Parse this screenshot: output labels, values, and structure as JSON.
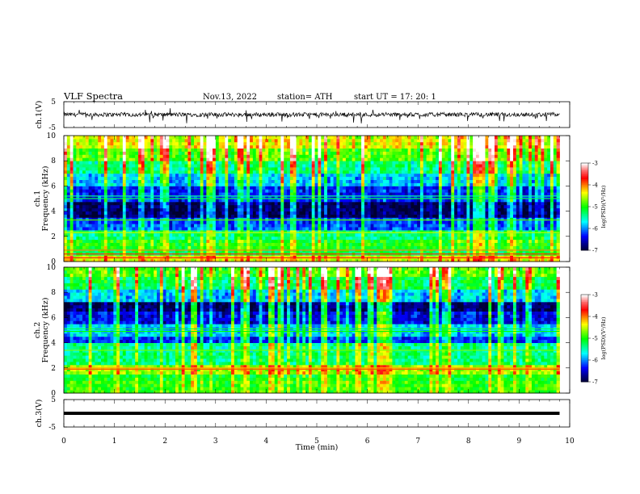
{
  "header": {
    "title": "VLF  Spectra",
    "date": "Nov.13, 2022",
    "station": "station= ATH",
    "start_time": "start  UT  =    17: 20: 1"
  },
  "colors": {
    "trace": "#000000",
    "colormap": [
      "#000030",
      "#000090",
      "#0000ff",
      "#0080ff",
      "#00ffff",
      "#00ff80",
      "#00ff00",
      "#80ff00",
      "#ffff00",
      "#ff8000",
      "#ff0000",
      "#ff6666",
      "#ffffff"
    ]
  },
  "chart_data": [
    {
      "name": "ch1-waveform",
      "type": "line",
      "ylabel": "ch.1(V)",
      "xlim": [
        0,
        10
      ],
      "ylim": [
        -5,
        5
      ],
      "yticks": [
        "5",
        "-5"
      ],
      "trace": {
        "x_end": 9.8,
        "baseline": 0,
        "amplitude": 0.8,
        "spike_amplitude": 3.0
      }
    },
    {
      "name": "ch1-spectrogram",
      "type": "heatmap",
      "ylabel_line1": "ch.1",
      "ylabel_line2": "Frequency  (kHz)",
      "xlim": [
        0,
        10
      ],
      "ylim": [
        0,
        10
      ],
      "yticks": [
        "0",
        "2",
        "4",
        "6",
        "8",
        "10"
      ],
      "x_data_end": 9.8,
      "colorbar": {
        "label": "log(PSD)(V²/Hz)",
        "range": [
          -7,
          -3
        ],
        "ticks": [
          "-3",
          "-4",
          "-5",
          "-6",
          "-7"
        ]
      },
      "bands": [
        {
          "f0": 0.0,
          "f1": 0.4,
          "level": 0.65
        },
        {
          "f0": 0.4,
          "f1": 1.0,
          "level": 0.45
        },
        {
          "f0": 1.0,
          "f1": 1.8,
          "level": 0.5
        },
        {
          "f0": 1.8,
          "f1": 2.4,
          "level": 0.42
        },
        {
          "f0": 2.4,
          "f1": 3.0,
          "level": 0.22
        },
        {
          "f0": 3.0,
          "f1": 3.6,
          "level": 0.2
        },
        {
          "f0": 3.6,
          "f1": 4.8,
          "level": 0.04
        },
        {
          "f0": 4.8,
          "f1": 6.0,
          "level": 0.18
        },
        {
          "f0": 6.0,
          "f1": 7.0,
          "level": 0.3
        },
        {
          "f0": 7.0,
          "f1": 8.0,
          "level": 0.42
        },
        {
          "f0": 8.0,
          "f1": 9.0,
          "level": 0.55
        },
        {
          "f0": 9.0,
          "f1": 10.0,
          "level": 0.66
        }
      ],
      "lines": [
        {
          "f": 0.3,
          "level": 0.85
        },
        {
          "f": 0.6,
          "level": 0.8
        },
        {
          "f": 0.9,
          "level": 0.75
        },
        {
          "f": 2.3,
          "level": 0.62
        },
        {
          "f": 3.3,
          "level": 0.55
        },
        {
          "f": 5.0,
          "level": 0.45
        },
        {
          "f": 5.2,
          "level": 0.4
        }
      ]
    },
    {
      "name": "ch2-spectrogram",
      "type": "heatmap",
      "ylabel_line1": "ch.2",
      "ylabel_line2": "Frequency  (kHz)",
      "xlim": [
        0,
        10
      ],
      "ylim": [
        0,
        10
      ],
      "yticks": [
        "0",
        "2",
        "4",
        "6",
        "8",
        "10"
      ],
      "x_data_end": 9.8,
      "colorbar": {
        "label": "log(PSD)(V²/Hz)",
        "range": [
          -7,
          -3
        ],
        "ticks": [
          "-3",
          "-4",
          "-5",
          "-6",
          "-7"
        ]
      },
      "bands": [
        {
          "f0": 0.0,
          "f1": 1.0,
          "level": 0.52
        },
        {
          "f0": 1.0,
          "f1": 1.6,
          "level": 0.48
        },
        {
          "f0": 1.6,
          "f1": 2.2,
          "level": 0.6
        },
        {
          "f0": 2.2,
          "f1": 3.2,
          "level": 0.42
        },
        {
          "f0": 3.2,
          "f1": 4.0,
          "level": 0.4
        },
        {
          "f0": 4.0,
          "f1": 4.6,
          "level": 0.18
        },
        {
          "f0": 4.6,
          "f1": 5.4,
          "level": 0.3
        },
        {
          "f0": 5.4,
          "f1": 6.4,
          "level": 0.15
        },
        {
          "f0": 6.4,
          "f1": 7.2,
          "level": 0.05
        },
        {
          "f0": 7.2,
          "f1": 8.2,
          "level": 0.3
        },
        {
          "f0": 8.2,
          "f1": 9.2,
          "level": 0.45
        },
        {
          "f0": 9.2,
          "f1": 10.0,
          "level": 0.55
        }
      ],
      "lines": [
        {
          "f": 1.9,
          "level": 0.78
        },
        {
          "f": 2.0,
          "level": 0.72
        },
        {
          "f": 3.4,
          "level": 0.58
        },
        {
          "f": 4.9,
          "level": 0.5
        },
        {
          "f": 5.1,
          "level": 0.45
        }
      ]
    },
    {
      "name": "ch3-waveform",
      "type": "line",
      "ylabel": "ch.3(V)",
      "xlabel": "Time  (min)",
      "xlim": [
        0,
        10
      ],
      "ylim": [
        -5,
        5
      ],
      "yticks": [
        "5",
        "-5"
      ],
      "xticks": [
        "0",
        "1",
        "2",
        "3",
        "4",
        "5",
        "6",
        "7",
        "8",
        "9",
        "10"
      ],
      "trace": {
        "x_end": 9.8,
        "value": 0
      }
    }
  ]
}
